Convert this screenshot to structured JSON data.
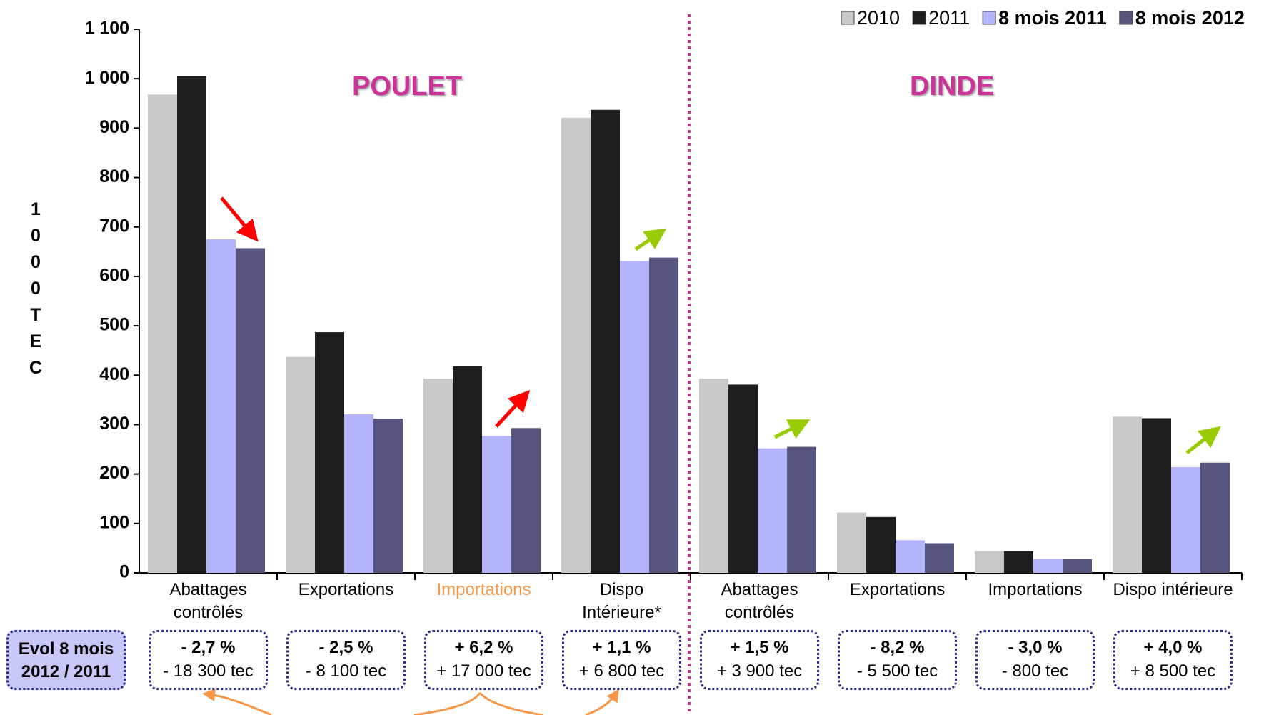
{
  "chart_data": {
    "type": "bar",
    "y_label": "1000 TEC",
    "groups": [
      "POULET",
      "DINDE"
    ],
    "categories": [
      "Abattages contrôlés",
      "Exportations",
      "Importations",
      "Dispo Intérieure*",
      "Abattages contrôlés",
      "Exportations",
      "Importations",
      "Dispo intérieure"
    ],
    "highlight_category": {
      "index": 2,
      "color": "#f79646"
    },
    "series": [
      {
        "name": "2010",
        "color": "#c8c8c8",
        "bold": false,
        "values": [
          968,
          437,
          393,
          921,
          393,
          122,
          44,
          316
        ]
      },
      {
        "name": "2011",
        "color": "#1e1e1e",
        "bold": false,
        "values": [
          1005,
          487,
          418,
          937,
          381,
          113,
          44,
          313
        ]
      },
      {
        "name": "8 mois 2011",
        "color": "#b4b4fa",
        "bold": true,
        "values": [
          675,
          321,
          277,
          631,
          252,
          66,
          28,
          214
        ]
      },
      {
        "name": "8 mois 2012",
        "color": "#55557e",
        "bold": true,
        "values": [
          657,
          312,
          293,
          638,
          255,
          60,
          28,
          223
        ]
      }
    ],
    "ylim": [
      0,
      1100
    ],
    "yticks": [
      0,
      100,
      200,
      300,
      400,
      500,
      600,
      700,
      800,
      900,
      {
        "value": 1000,
        "label": "1 000"
      },
      {
        "value": 1100,
        "label": "1 100"
      }
    ],
    "evol_label": [
      "Evol 8 mois",
      "2012 / 2011"
    ],
    "evolutions": [
      {
        "pct": "- 2,7 %",
        "tec": "- 18 300 tec"
      },
      {
        "pct": "- 2,5 %",
        "tec": "- 8 100 tec"
      },
      {
        "pct": "+ 6,2 %",
        "tec": "+ 17 000 tec"
      },
      {
        "pct": "+ 1,1 %",
        "tec": "+ 6 800 tec"
      },
      {
        "pct": "+ 1,5 %",
        "tec": "+ 3 900 tec"
      },
      {
        "pct": "- 8,2 %",
        "tec": "- 5 500 tec"
      },
      {
        "pct": "- 3,0 %",
        "tec": "- 800 tec"
      },
      {
        "pct": "+ 4,0 %",
        "tec": "+ 8 500 tec"
      }
    ]
  }
}
